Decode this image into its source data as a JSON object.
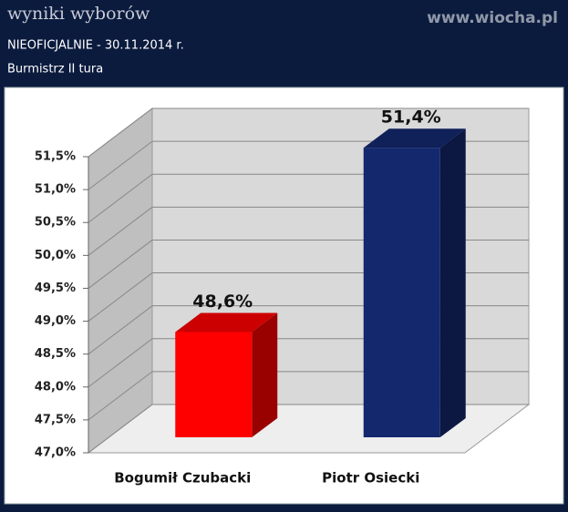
{
  "header": {
    "title": "wyniki wyborów",
    "subtitle": "NIEOFICJALNIE - 30.11.2014 r.",
    "section": "Burmistrz II tura",
    "watermark": "www.wiocha.pl"
  },
  "chart_data": {
    "type": "bar3d",
    "categories": [
      "Bogumił Czubacki",
      "Piotr Osiecki"
    ],
    "values": [
      48.6,
      51.4
    ],
    "value_labels": [
      "48,6%",
      "51,4%"
    ],
    "colors": [
      "#ff0000",
      "#14286e"
    ],
    "ylim": [
      47,
      51.5
    ],
    "yticks": [
      {
        "value": 47,
        "label": "47,0%"
      },
      {
        "value": 47.5,
        "label": "47,5%"
      },
      {
        "value": 48,
        "label": "48,0%"
      },
      {
        "value": 48.5,
        "label": "48,5%"
      },
      {
        "value": 49,
        "label": "49,0%"
      },
      {
        "value": 49.5,
        "label": "49,5%"
      },
      {
        "value": 50,
        "label": "50,0%"
      },
      {
        "value": 50.5,
        "label": "50,5%"
      },
      {
        "value": 51,
        "label": "51,0%"
      },
      {
        "value": 51.5,
        "label": "51,5%"
      }
    ],
    "grid": true
  }
}
